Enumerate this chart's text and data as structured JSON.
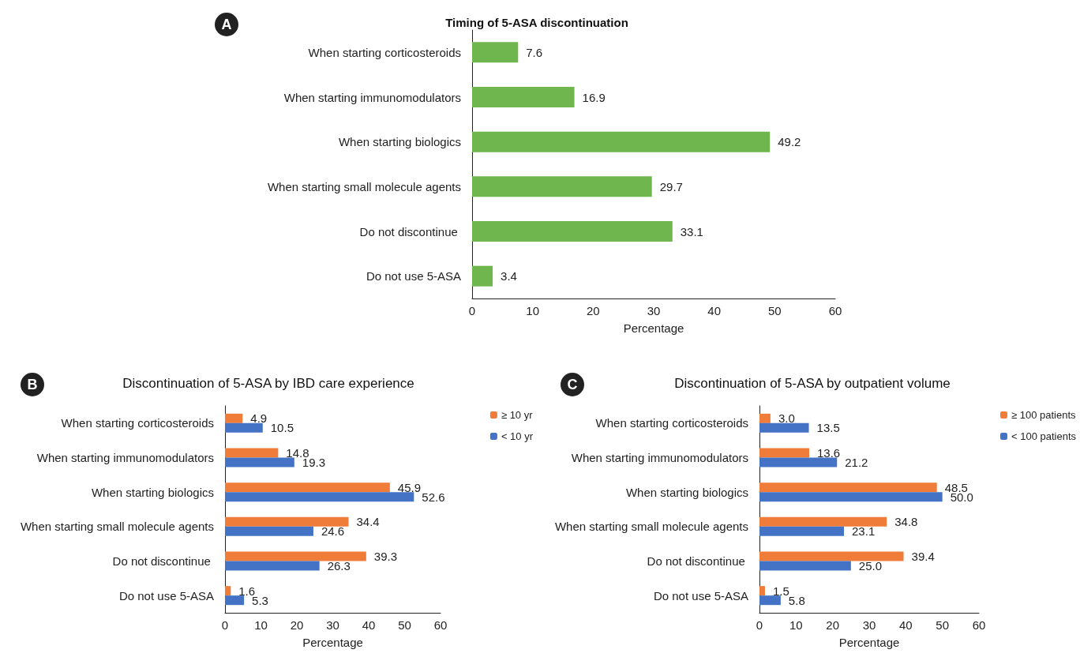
{
  "chart_data": [
    {
      "type": "bar",
      "orientation": "horizontal",
      "title": "Timing of 5-ASA discontinuation",
      "xlabel": "Percentage",
      "annotations": [
        "A"
      ],
      "categories": [
        "When starting corticosteroids",
        "When starting immunomodulators",
        "When starting biologics",
        "When starting small molecule agents",
        "Do not discontinue ",
        "Do not use 5-ASA"
      ],
      "series": [
        {
          "color": "#70b64f",
          "values": [
            7.6,
            16.9,
            49.2,
            29.7,
            33.1,
            3.4
          ]
        }
      ],
      "xlim": [
        0,
        60
      ],
      "xticks": [
        0,
        10,
        20,
        30,
        40,
        50,
        60
      ],
      "data_labels": true,
      "grid": false,
      "legend": false
    },
    {
      "type": "bar",
      "orientation": "horizontal",
      "title": "Discontinuation of 5-ASA by IBD care experience",
      "xlabel": "Percentage",
      "annotations": [
        "B"
      ],
      "categories": [
        "When starting corticosteroids",
        "When starting immunomodulators",
        "When starting biologics",
        "When starting small molecule agents",
        "Do not discontinue ",
        "Do not use 5-ASA"
      ],
      "series": [
        {
          "name": "≥ 10 yr",
          "color": "#f07c3a",
          "values": [
            4.9,
            14.8,
            45.9,
            34.4,
            39.3,
            1.6
          ]
        },
        {
          "name": "< 10 yr",
          "color": "#4472c4",
          "values": [
            10.5,
            19.3,
            52.6,
            24.6,
            26.3,
            5.3
          ]
        }
      ],
      "xlim": [
        0,
        60
      ],
      "xticks": [
        0,
        10,
        20,
        30,
        40,
        50,
        60
      ],
      "data_labels": true,
      "grid": false,
      "legend": "top right"
    },
    {
      "type": "bar",
      "orientation": "horizontal",
      "title": "Discontinuation of 5-ASA by outpatient volume",
      "xlabel": "Percentage",
      "annotations": [
        "C"
      ],
      "categories": [
        "When starting corticosteroids",
        "When starting immunomodulators",
        "When starting biologics",
        "When starting small molecule agents",
        "Do not discontinue ",
        "Do not use 5-ASA"
      ],
      "series": [
        {
          "name": "≥ 100 patients",
          "color": "#f07c3a",
          "values": [
            3.0,
            13.6,
            48.5,
            34.8,
            39.4,
            1.5
          ],
          "value_labels": [
            "3.0",
            "13.6",
            "48.5",
            "34.8",
            "39.4",
            "1.5"
          ]
        },
        {
          "name": "< 100 patients",
          "color": "#4472c4",
          "values": [
            13.5,
            21.2,
            50.0,
            23.1,
            25.0,
            5.8
          ],
          "value_labels": [
            "13.5",
            "21.2",
            "50.0",
            "23.1",
            "25.0",
            "5.8"
          ]
        }
      ],
      "xlim": [
        0,
        60
      ],
      "xticks": [
        0,
        10,
        20,
        30,
        40,
        50,
        60
      ],
      "grid": false,
      "legend": "top right"
    }
  ]
}
